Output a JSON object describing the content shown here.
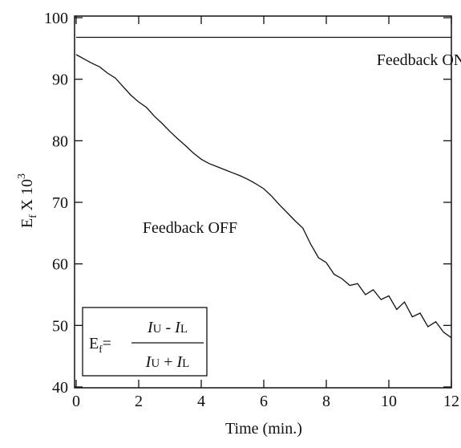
{
  "chart_data": {
    "type": "line",
    "xlabel": "Time (min.)",
    "ylabel": {
      "main": "E",
      "sub": "f",
      "times": " X 10",
      "sup": "3"
    },
    "xlim": [
      0,
      12
    ],
    "xticks": [
      0,
      2,
      4,
      6,
      8,
      10,
      12
    ],
    "ylim": [
      40,
      100
    ],
    "yticks": [
      40,
      50,
      60,
      70,
      80,
      90,
      100
    ],
    "formula": {
      "lhs": "E",
      "lhs_sub": "f",
      "eq": "=",
      "num": [
        "I",
        "U",
        " - ",
        "I",
        "L"
      ],
      "den": [
        "I",
        "U",
        " + ",
        "I",
        "L"
      ]
    },
    "series": [
      {
        "name": "Feedback ON",
        "color": "#111111",
        "x": [
          0,
          12
        ],
        "values": [
          96.8,
          96.8
        ]
      },
      {
        "name": "Feedback OFF",
        "color": "#111111",
        "x": [
          0,
          0.25,
          0.5,
          0.75,
          1,
          1.25,
          1.5,
          1.75,
          2,
          2.25,
          2.5,
          2.75,
          3,
          3.25,
          3.5,
          3.75,
          4,
          4.25,
          4.5,
          4.75,
          5,
          5.25,
          5.5,
          5.75,
          6,
          6.25,
          6.5,
          6.75,
          7,
          7.25,
          7.5,
          7.75,
          8,
          8.25,
          8.5,
          8.75,
          9,
          9.25,
          9.5,
          9.75,
          10,
          10.25,
          10.5,
          10.75,
          11,
          11.25,
          11.5,
          11.75,
          12
        ],
        "values": [
          94.0,
          93.3,
          92.6,
          92.0,
          91.0,
          90.2,
          88.8,
          87.4,
          86.3,
          85.4,
          84.0,
          82.8,
          81.5,
          80.3,
          79.2,
          78.0,
          77.0,
          76.3,
          75.8,
          75.3,
          74.8,
          74.3,
          73.7,
          73.0,
          72.2,
          71.0,
          69.6,
          68.3,
          67.0,
          65.8,
          63.2,
          61.0,
          60.2,
          58.3,
          57.6,
          56.5,
          56.8,
          55.0,
          55.8,
          54.2,
          54.8,
          52.6,
          53.8,
          51.4,
          52.0,
          49.8,
          50.6,
          48.9,
          48.0
        ]
      }
    ]
  }
}
